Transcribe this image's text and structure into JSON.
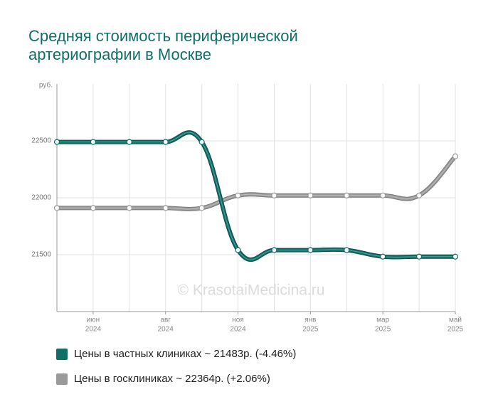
{
  "chart_data": {
    "type": "line",
    "title": [
      "Средняя стоимость периферической",
      "артериографии в Москве"
    ],
    "y_axis_label": "руб.",
    "watermark": "© KrasotaiMedicina.ru",
    "categories": [
      null,
      "июн",
      null,
      "авг",
      null,
      "ноя",
      null,
      "янв",
      null,
      "мар",
      null,
      "май"
    ],
    "category_years": [
      null,
      "2024",
      null,
      "2024",
      null,
      "2024",
      null,
      "2025",
      null,
      "2025",
      null,
      "2025"
    ],
    "ylim": [
      21000,
      23000
    ],
    "yticks": [
      21500,
      22000,
      22500
    ],
    "grid": true,
    "series": [
      {
        "name": "Цены в частных клиниках ~ 21483р. (-4.46%)",
        "color": "#0f6e67",
        "values": [
          22490,
          22490,
          22490,
          22490,
          22490,
          21540,
          21540,
          21540,
          21540,
          21483,
          21483,
          21483
        ]
      },
      {
        "name": "Цены в госклиниках ~ 22364р. (+2.06%)",
        "color": "#9a9a9a",
        "values": [
          21910,
          21910,
          21910,
          21910,
          21910,
          22020,
          22020,
          22020,
          22020,
          22020,
          22020,
          22364
        ]
      }
    ]
  }
}
